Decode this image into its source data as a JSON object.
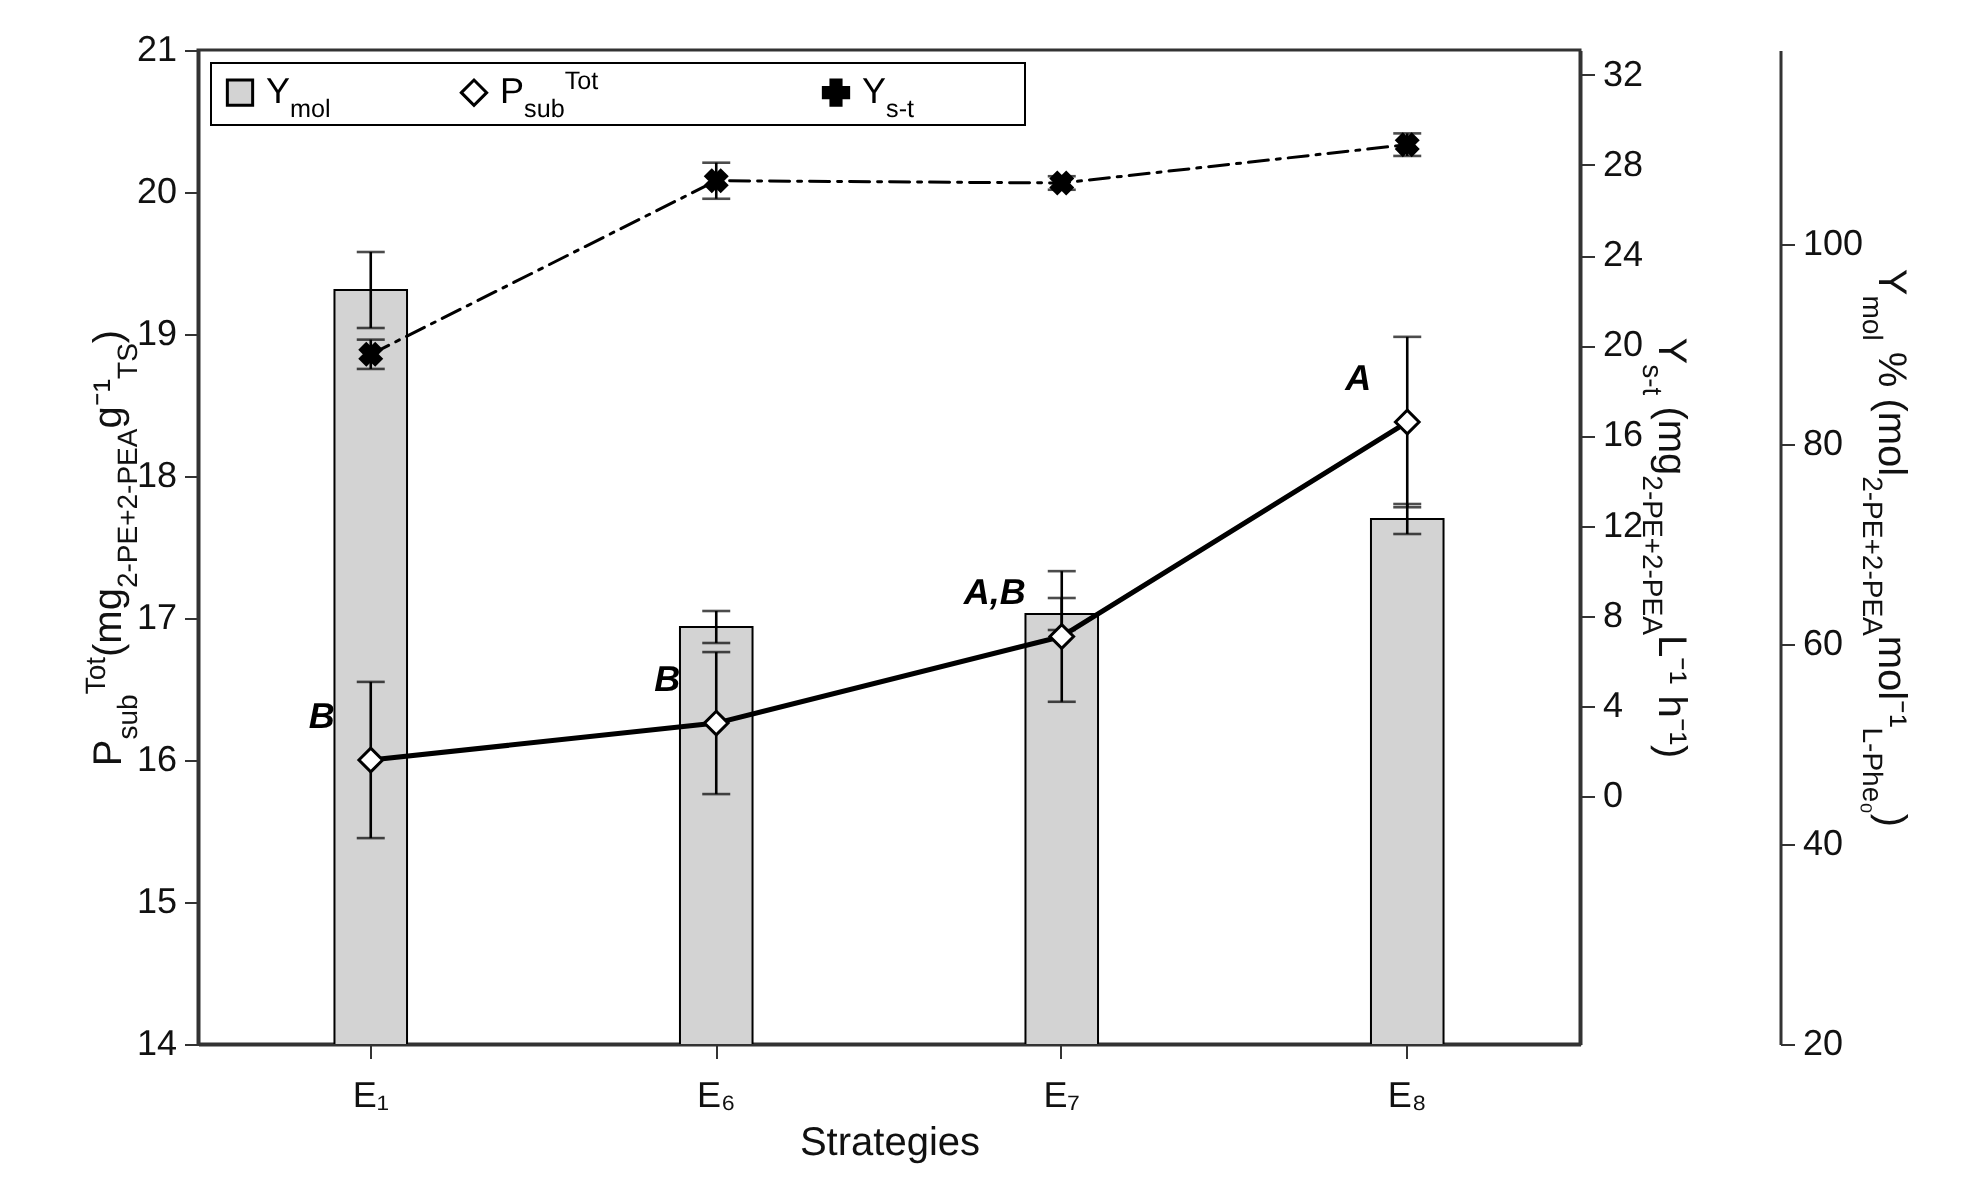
{
  "chart_data": {
    "type": "bar",
    "xlabel": "Strategies",
    "ylabel": "P$_{sub}$$^{Tot}$(mg$_{2-PE+2-PEA}$g⁻¹$_{TS}$)",
    "y2label": "Y$_{s-t}$ (mg$_{2-PE+2-PEA}$L⁻¹ h⁻¹)",
    "y3label": "Y$_{mol}$ % (mol$_{2-PE+2-PEA}$mol⁻¹$_{L-Phe₀}$)",
    "categories": [
      "E₁",
      "E₆",
      "E₇",
      "E₈"
    ],
    "series": [
      {
        "name": "Y$_{mol}$",
        "type": "bar",
        "axis": "y3",
        "color": "#d3d3d3",
        "values": [
          95.4,
          61.7,
          63.0,
          72.5
        ],
        "errors": [
          3.8,
          1.6,
          1.6,
          1.5
        ]
      },
      {
        "name": "P$_{sub}$$^{Tot}$",
        "type": "line",
        "axis": "y",
        "color": "#000000",
        "marker": "diamond",
        "line_style": "solid",
        "values": [
          16.0,
          16.26,
          16.87,
          18.38
        ],
        "errors": [
          0.55,
          0.5,
          0.46,
          0.6
        ]
      },
      {
        "name": "Y$_{s-t}$",
        "type": "line",
        "axis": "y2",
        "color": "#000000",
        "marker": "cross",
        "line_style": "dashed",
        "values": [
          19.6,
          27.3,
          27.2,
          28.9
        ],
        "errors": [
          0.65,
          0.8,
          0.3,
          0.5
        ]
      }
    ],
    "ylim": [
      14,
      21
    ],
    "yticks": [
      14,
      15,
      16,
      17,
      18,
      19,
      20,
      21
    ],
    "y2lim": [
      -11,
      33.1
    ],
    "y2ticks": [
      0,
      4,
      8,
      12,
      16,
      20,
      24,
      28,
      32
    ],
    "y3lim": [
      20,
      119.4
    ],
    "y3ticks": [
      20,
      40,
      60,
      80,
      100
    ],
    "legend": "top left",
    "annotations": [
      {
        "text": "B",
        "x": "E₁",
        "y": 16.0
      },
      {
        "text": "B",
        "x": "E₆",
        "y": 16.26
      },
      {
        "text": "A,B",
        "x": "E₇",
        "y": 16.87
      },
      {
        "text": "A",
        "x": "E₈",
        "y": 18.38
      }
    ]
  }
}
